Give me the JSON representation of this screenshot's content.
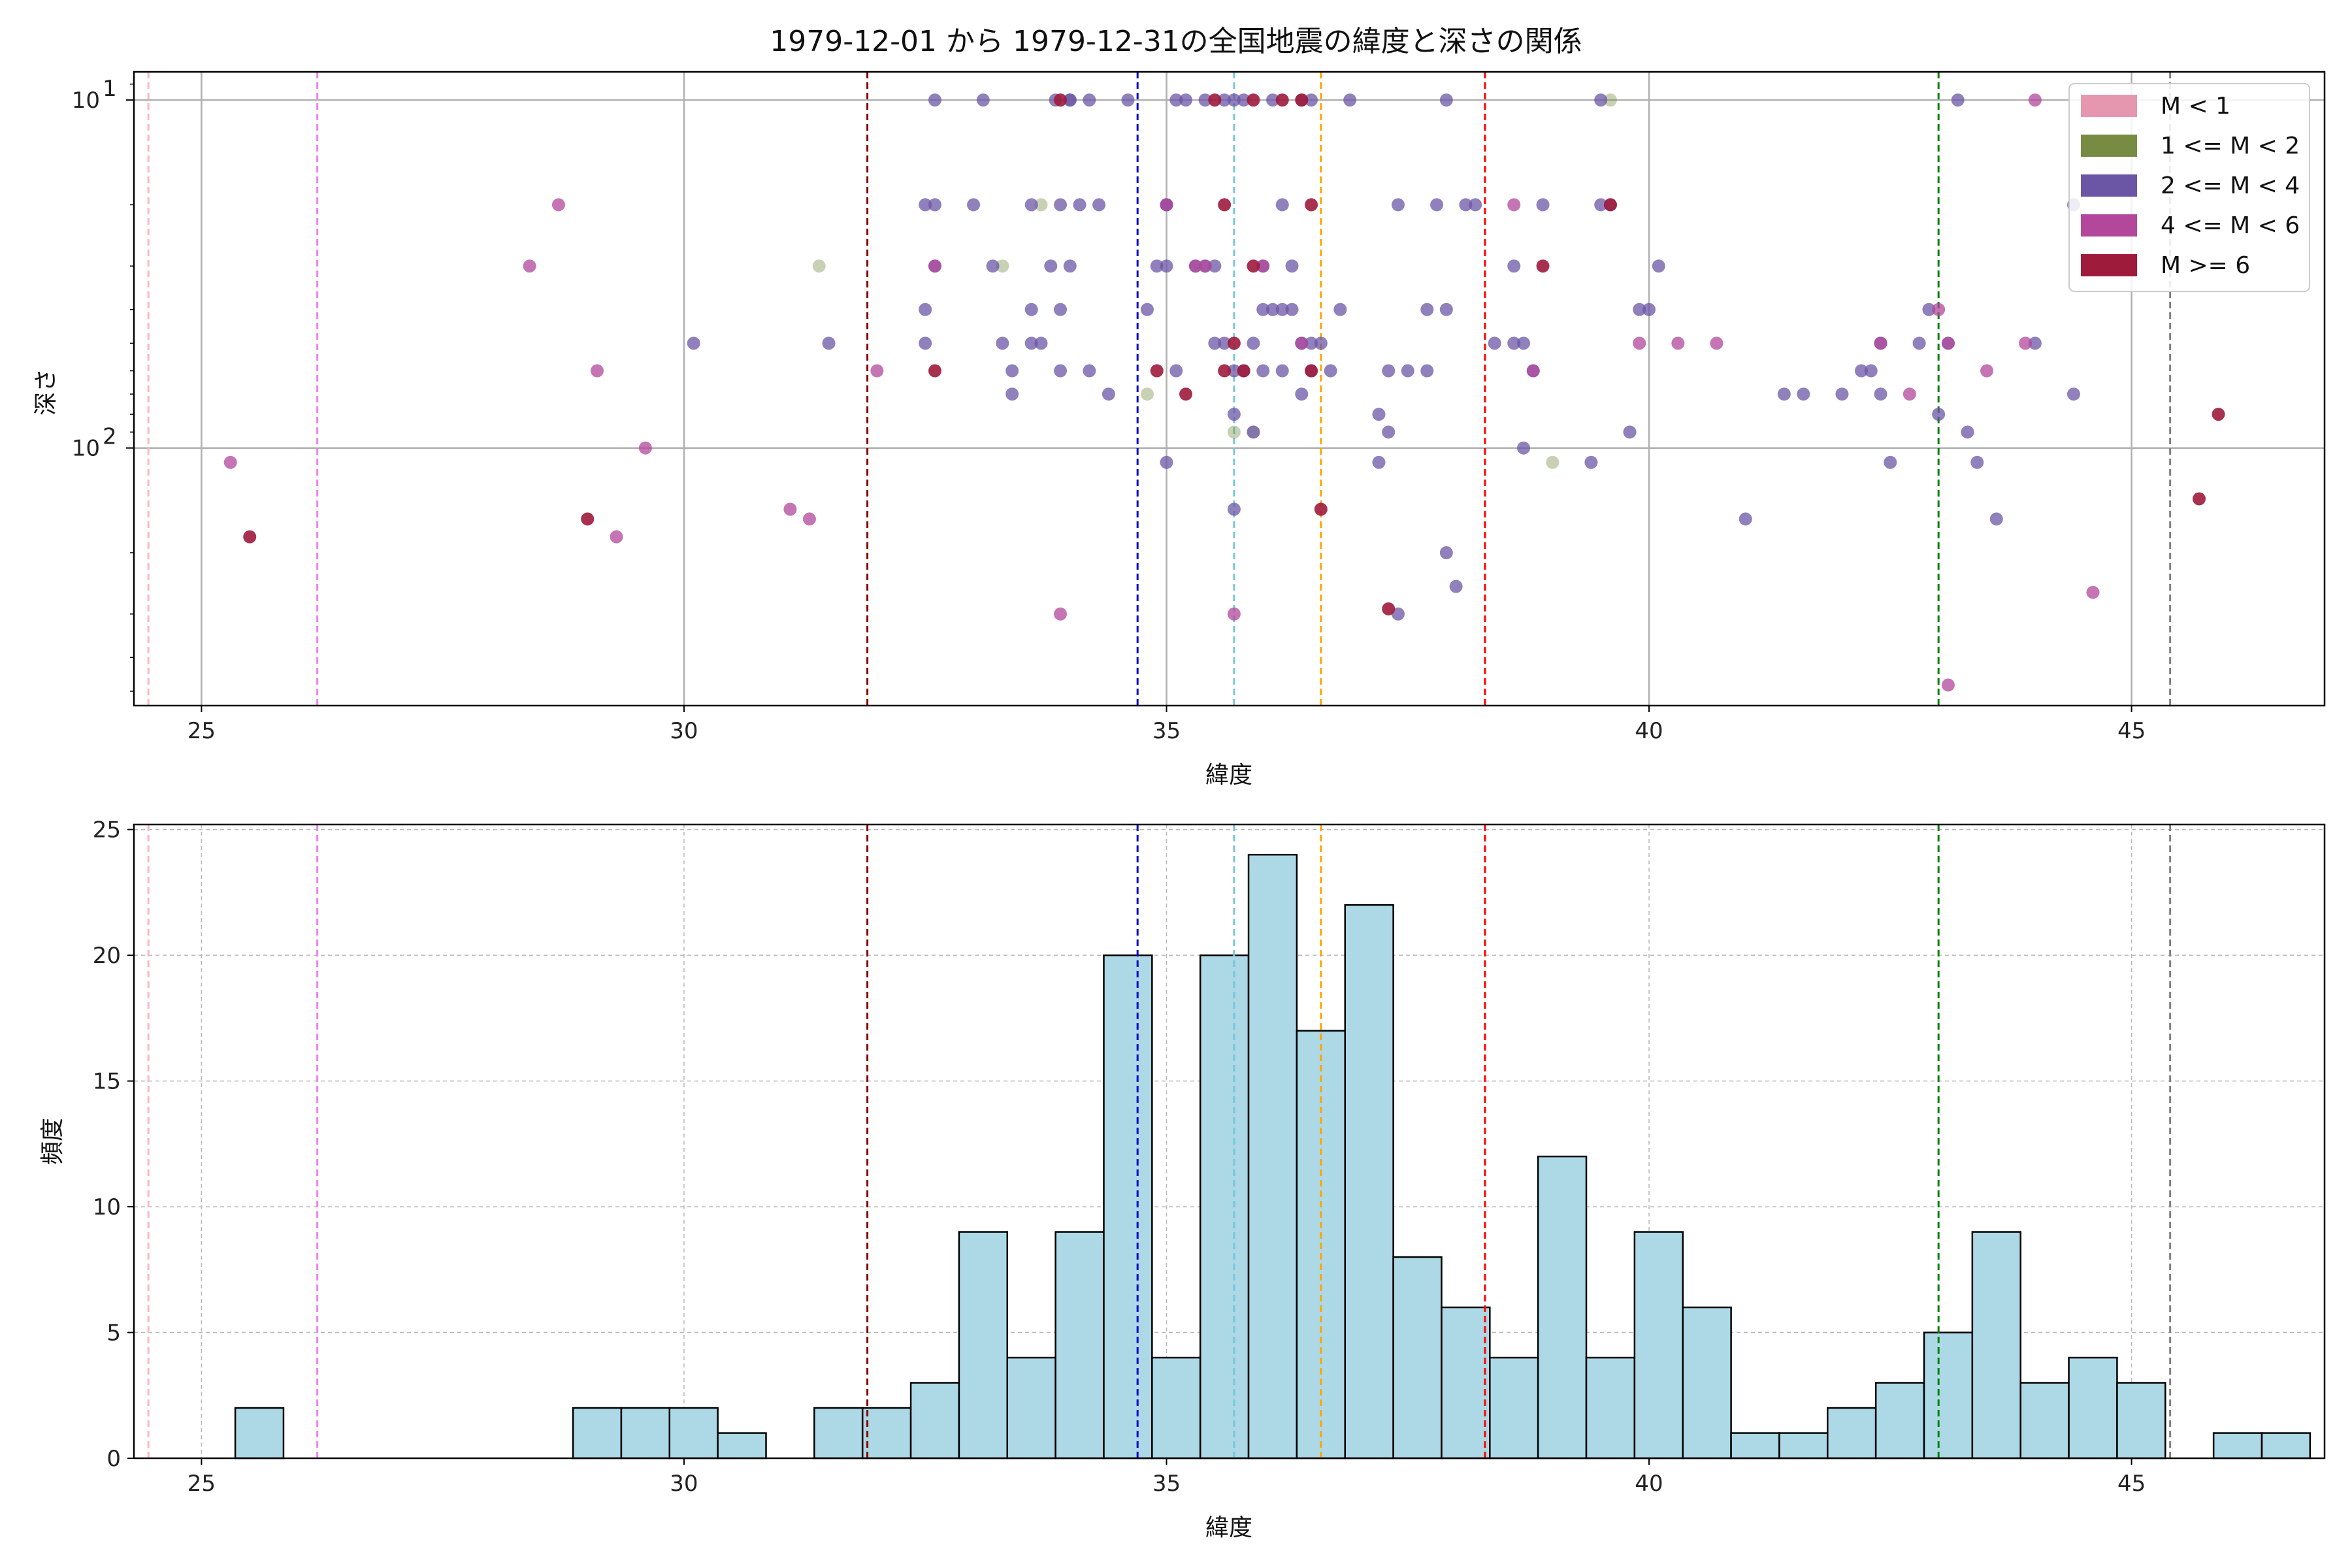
{
  "chart_data": [
    {
      "type": "scatter",
      "title": "1979-12-01 から 1979-12-31の全国地震の緯度と深さの関係",
      "xlabel": "緯度",
      "ylabel": "深さ",
      "xlim": [
        24.3,
        47.0
      ],
      "ylim_log": [
        550,
        8.3
      ],
      "y_scale": "log",
      "y_inverted": true,
      "xticks": [
        25,
        30,
        35,
        40,
        45
      ],
      "xtick_labels": [
        "25",
        "30",
        "35",
        "40",
        "45"
      ],
      "ytick_labels": [
        {
          "base": "10",
          "exp": "1"
        },
        {
          "base": "10",
          "exp": "2"
        }
      ],
      "grid": true,
      "legend_position": "top-right",
      "legend": [
        {
          "label": "M < 1",
          "color": "#e597b0"
        },
        {
          "label": "1 <= M < 2",
          "color": "#778b43"
        },
        {
          "label": "2 <= M < 4",
          "color": "#6b56a5"
        },
        {
          "label": "4 <= M < 6",
          "color": "#b2479b"
        },
        {
          "label": "M >= 6",
          "color": "#9e1b3c"
        }
      ],
      "vlines": [
        {
          "x": 24.45,
          "color": "#ffb6c1"
        },
        {
          "x": 26.2,
          "color": "#ee82ee"
        },
        {
          "x": 31.9,
          "color": "#8b0000"
        },
        {
          "x": 34.7,
          "color": "#0000cd"
        },
        {
          "x": 35.7,
          "color": "#76c7dd"
        },
        {
          "x": 36.6,
          "color": "#ffa500"
        },
        {
          "x": 38.3,
          "color": "#ff0000"
        },
        {
          "x": 43.0,
          "color": "#008000"
        },
        {
          "x": 45.4,
          "color": "#808080"
        }
      ],
      "series": [
        {
          "name": "1 <= M < 2",
          "color": "#778b43",
          "alpha": 0.4,
          "points": [
            [
              31.4,
              30
            ],
            [
              33.3,
              30
            ],
            [
              33.7,
              20
            ],
            [
              34.8,
              70
            ],
            [
              35.9,
              90
            ],
            [
              39.0,
              110
            ],
            [
              39.6,
              10
            ],
            [
              35.7,
              90
            ]
          ]
        },
        {
          "name": "2 <= M < 4",
          "color": "#6b56a5",
          "alpha": 0.75,
          "points": [
            [
              30.1,
              50
            ],
            [
              31.5,
              50
            ],
            [
              32.5,
              20
            ],
            [
              32.5,
              40
            ],
            [
              32.5,
              50
            ],
            [
              32.6,
              30
            ],
            [
              32.6,
              20
            ],
            [
              32.6,
              10
            ],
            [
              33.0,
              20
            ],
            [
              33.1,
              10
            ],
            [
              33.2,
              30
            ],
            [
              33.3,
              50
            ],
            [
              33.4,
              70
            ],
            [
              33.4,
              60
            ],
            [
              33.6,
              20
            ],
            [
              33.6,
              50
            ],
            [
              33.6,
              40
            ],
            [
              33.7,
              50
            ],
            [
              33.8,
              30
            ],
            [
              33.85,
              10
            ],
            [
              33.9,
              60
            ],
            [
              33.9,
              20
            ],
            [
              33.9,
              40
            ],
            [
              34.0,
              10
            ],
            [
              34.0,
              30
            ],
            [
              34.0,
              10
            ],
            [
              34.1,
              20
            ],
            [
              34.2,
              60
            ],
            [
              34.2,
              10
            ],
            [
              34.3,
              20
            ],
            [
              34.4,
              70
            ],
            [
              34.6,
              10
            ],
            [
              34.8,
              40
            ],
            [
              34.9,
              30
            ],
            [
              35.0,
              20
            ],
            [
              35.0,
              30
            ],
            [
              35.0,
              110
            ],
            [
              35.0,
              20
            ],
            [
              35.1,
              60
            ],
            [
              35.1,
              10
            ],
            [
              35.2,
              10
            ],
            [
              35.3,
              30
            ],
            [
              35.4,
              30
            ],
            [
              35.4,
              10
            ],
            [
              35.5,
              30
            ],
            [
              35.5,
              50
            ],
            [
              35.6,
              10
            ],
            [
              35.6,
              50
            ],
            [
              35.7,
              60
            ],
            [
              35.7,
              10
            ],
            [
              35.7,
              80
            ],
            [
              35.7,
              150
            ],
            [
              35.8,
              10
            ],
            [
              35.8,
              60
            ],
            [
              35.9,
              50
            ],
            [
              35.9,
              90
            ],
            [
              36.0,
              40
            ],
            [
              36.0,
              30
            ],
            [
              36.0,
              60
            ],
            [
              36.1,
              40
            ],
            [
              36.1,
              10
            ],
            [
              36.2,
              20
            ],
            [
              36.2,
              40
            ],
            [
              36.2,
              60
            ],
            [
              36.3,
              40
            ],
            [
              36.3,
              30
            ],
            [
              36.4,
              50
            ],
            [
              36.4,
              10
            ],
            [
              36.4,
              70
            ],
            [
              36.5,
              50
            ],
            [
              36.5,
              60
            ],
            [
              36.5,
              10
            ],
            [
              36.6,
              50
            ],
            [
              36.7,
              60
            ],
            [
              36.8,
              40
            ],
            [
              36.9,
              10
            ],
            [
              37.2,
              110
            ],
            [
              37.2,
              80
            ],
            [
              37.3,
              90
            ],
            [
              37.3,
              60
            ],
            [
              37.4,
              20
            ],
            [
              37.4,
              300
            ],
            [
              37.5,
              60
            ],
            [
              37.7,
              60
            ],
            [
              37.7,
              40
            ],
            [
              37.8,
              20
            ],
            [
              37.9,
              10
            ],
            [
              37.9,
              40
            ],
            [
              37.9,
              200
            ],
            [
              38.0,
              250
            ],
            [
              38.1,
              20
            ],
            [
              38.2,
              20
            ],
            [
              38.4,
              50
            ],
            [
              38.6,
              30
            ],
            [
              38.6,
              50
            ],
            [
              38.7,
              50
            ],
            [
              38.7,
              100
            ],
            [
              38.8,
              60
            ],
            [
              38.9,
              20
            ],
            [
              39.4,
              110
            ],
            [
              39.5,
              10
            ],
            [
              39.5,
              20
            ],
            [
              39.6,
              20
            ],
            [
              39.8,
              90
            ],
            [
              39.9,
              40
            ],
            [
              40.0,
              40
            ],
            [
              40.1,
              30
            ],
            [
              41.0,
              160
            ],
            [
              41.4,
              70
            ],
            [
              41.6,
              70
            ],
            [
              42.0,
              70
            ],
            [
              42.2,
              60
            ],
            [
              42.3,
              60
            ],
            [
              42.4,
              50
            ],
            [
              42.4,
              70
            ],
            [
              42.5,
              110
            ],
            [
              42.8,
              50
            ],
            [
              42.9,
              40
            ],
            [
              43.0,
              80
            ],
            [
              43.1,
              50
            ],
            [
              43.2,
              10
            ],
            [
              43.3,
              90
            ],
            [
              43.4,
              110
            ],
            [
              43.6,
              160
            ],
            [
              44.0,
              50
            ],
            [
              44.4,
              20
            ],
            [
              44.4,
              70
            ]
          ]
        },
        {
          "name": "4 <= M < 6",
          "color": "#b2479b",
          "alpha": 0.75,
          "points": [
            [
              25.3,
              110
            ],
            [
              28.4,
              30
            ],
            [
              28.7,
              20
            ],
            [
              29.1,
              60
            ],
            [
              29.6,
              100
            ],
            [
              31.1,
              150
            ],
            [
              31.3,
              160
            ],
            [
              32.0,
              60
            ],
            [
              32.6,
              30
            ],
            [
              33.9,
              300
            ],
            [
              35.0,
              20
            ],
            [
              35.3,
              30
            ],
            [
              35.4,
              30
            ],
            [
              35.7,
              300
            ],
            [
              36.0,
              30
            ],
            [
              36.4,
              50
            ],
            [
              38.6,
              20
            ],
            [
              38.8,
              60
            ],
            [
              39.9,
              50
            ],
            [
              40.3,
              50
            ],
            [
              40.7,
              50
            ],
            [
              42.4,
              50
            ],
            [
              42.7,
              70
            ],
            [
              43.0,
              40
            ],
            [
              43.1,
              50
            ],
            [
              43.1,
              480
            ],
            [
              43.5,
              60
            ],
            [
              43.9,
              50
            ],
            [
              44.0,
              10
            ],
            [
              44.6,
              260
            ],
            [
              29.3,
              180
            ]
          ]
        },
        {
          "name": "M >= 6",
          "color": "#9e1b3c",
          "alpha": 0.9,
          "points": [
            [
              25.5,
              180
            ],
            [
              29.0,
              160
            ],
            [
              32.6,
              60
            ],
            [
              33.9,
              10
            ],
            [
              34.9,
              60
            ],
            [
              35.2,
              70
            ],
            [
              35.5,
              10
            ],
            [
              35.6,
              20
            ],
            [
              35.6,
              60
            ],
            [
              35.7,
              50
            ],
            [
              35.8,
              60
            ],
            [
              35.9,
              10
            ],
            [
              35.9,
              30
            ],
            [
              36.2,
              10
            ],
            [
              36.4,
              10
            ],
            [
              36.5,
              20
            ],
            [
              36.6,
              150
            ],
            [
              37.3,
              290
            ],
            [
              38.9,
              30
            ],
            [
              39.6,
              20
            ],
            [
              45.7,
              140
            ],
            [
              45.9,
              80
            ],
            [
              36.5,
              60
            ]
          ]
        }
      ]
    },
    {
      "type": "bar",
      "title": "",
      "xlabel": "緯度",
      "ylabel": "頻度",
      "xlim": [
        24.3,
        47.0
      ],
      "ylim": [
        0,
        25.2
      ],
      "xticks": [
        25,
        30,
        35,
        40,
        45
      ],
      "xtick_labels": [
        "25",
        "30",
        "35",
        "40",
        "45"
      ],
      "yticks": [
        0,
        5,
        10,
        15,
        20,
        25
      ],
      "ytick_labels": [
        "0",
        "5",
        "10",
        "15",
        "20",
        "25"
      ],
      "grid": true,
      "bar_color": "#add8e6",
      "edge_color": "#000000",
      "bin_start": 25.35,
      "bin_width": 0.5,
      "values": [
        2,
        0,
        0,
        0,
        0,
        0,
        0,
        2,
        2,
        2,
        1,
        0,
        2,
        2,
        3,
        9,
        4,
        9,
        20,
        4,
        20,
        24,
        17,
        22,
        8,
        6,
        4,
        12,
        4,
        9,
        6,
        1,
        1,
        2,
        3,
        5,
        9,
        3,
        4,
        3,
        0,
        1,
        1
      ],
      "vlines": [
        {
          "x": 24.45,
          "color": "#ffb6c1"
        },
        {
          "x": 26.2,
          "color": "#ee82ee"
        },
        {
          "x": 31.9,
          "color": "#8b0000"
        },
        {
          "x": 34.7,
          "color": "#0000cd"
        },
        {
          "x": 35.7,
          "color": "#76c7dd"
        },
        {
          "x": 36.6,
          "color": "#ffa500"
        },
        {
          "x": 38.3,
          "color": "#ff0000"
        },
        {
          "x": 43.0,
          "color": "#008000"
        },
        {
          "x": 45.4,
          "color": "#808080"
        }
      ]
    }
  ]
}
